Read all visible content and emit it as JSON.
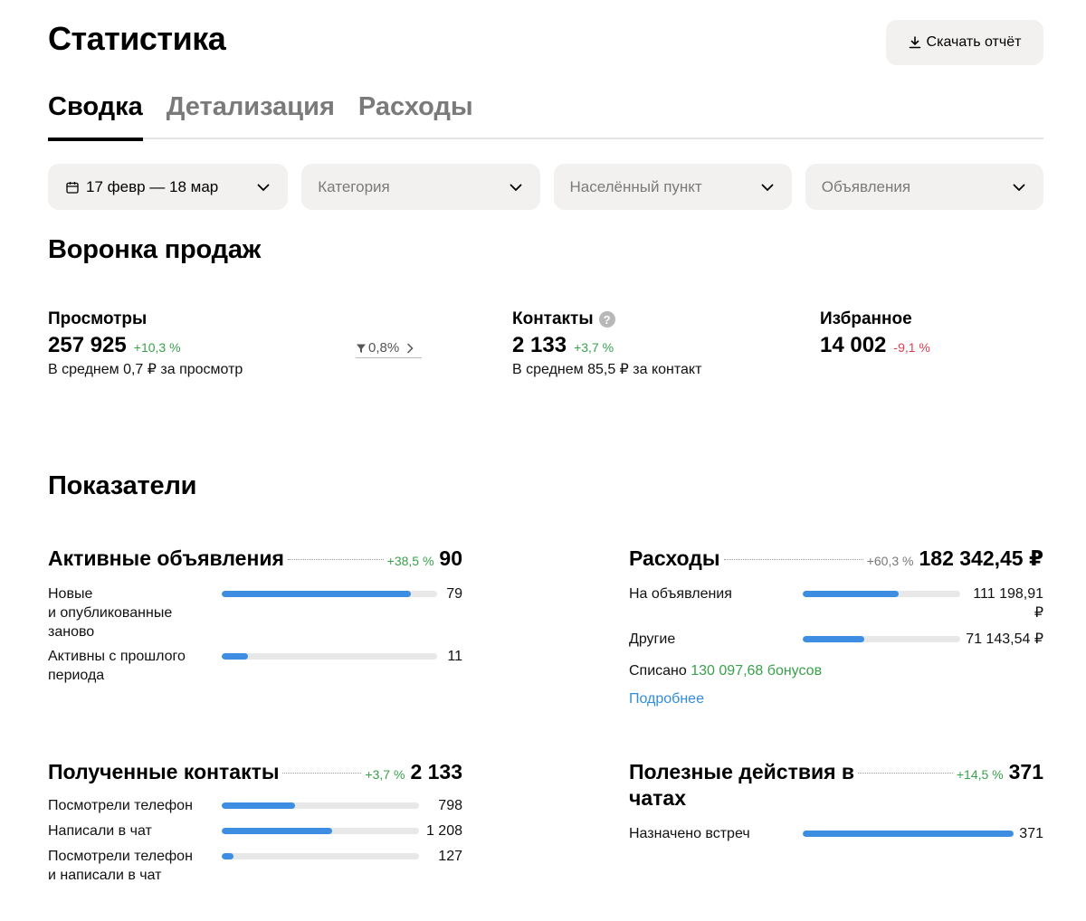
{
  "header": {
    "title": "Статистика",
    "download_label": "Скачать отчёт"
  },
  "tabs": [
    {
      "label": "Сводка",
      "active": true
    },
    {
      "label": "Детализация",
      "active": false
    },
    {
      "label": "Расходы",
      "active": false
    }
  ],
  "filters": {
    "date": "17 февр — 18 мар",
    "category": "Категория",
    "location": "Населённый пункт",
    "ads": "Объявления"
  },
  "funnel": {
    "title": "Воронка продаж",
    "views": {
      "label": "Просмотры",
      "value": "257 925",
      "delta": "+10,3 %",
      "sub": "В среднем 0,7 ₽ за просмотр"
    },
    "conversion": "0,8%",
    "contacts": {
      "label": "Контакты",
      "help": "?",
      "value": "2 133",
      "delta": "+3,7 %",
      "sub": "В среднем 85,5 ₽ за контакт"
    },
    "favorites": {
      "label": "Избранное",
      "value": "14 002",
      "delta": "-9,1 %"
    }
  },
  "metrics": {
    "title": "Показатели",
    "active_ads": {
      "title": "Активные объявления",
      "delta": "+38,5 %",
      "total": "90",
      "rows": [
        {
          "label_line1": "Новые",
          "label_line2": "и опубликованные",
          "label_line3": "заново",
          "value": "79",
          "fill": 0.88
        },
        {
          "label_line1": "Активны с прошлого",
          "label_line2": "периода",
          "value": "11",
          "fill": 0.12
        }
      ]
    },
    "expenses": {
      "title": "Расходы",
      "delta": "+60,3 %",
      "total": "182 342,45 ₽",
      "rows": [
        {
          "label": "На объявления",
          "value": "111 198,91 ₽",
          "fill": 0.61
        },
        {
          "label": "Другие",
          "value": "71 143,54 ₽",
          "fill": 0.39
        }
      ],
      "bonus_prefix": "Списано",
      "bonus_value": "130 097,68 бонусов",
      "more_link": "Подробнее"
    },
    "contacts": {
      "title": "Полученные контакты",
      "delta": "+3,7 %",
      "total": "2 133",
      "rows": [
        {
          "label": "Посмотрели телефон",
          "value": "798",
          "fill": 0.37
        },
        {
          "label": "Написали в чат",
          "value": "1 208",
          "fill": 0.56
        },
        {
          "label_line1": "Посмотрели телефон",
          "label_line2": "и написали в чат",
          "value": "127",
          "fill": 0.06
        }
      ]
    },
    "chat_actions": {
      "title_line1": "Полезные действия в",
      "title_line2": "чатах",
      "delta": "+14,5 %",
      "total": "371",
      "rows": [
        {
          "label": "Назначено встреч",
          "value": "371",
          "fill": 1.0
        }
      ]
    }
  },
  "colors": {
    "accent_bar": "#3d8de2",
    "positive": "#38a14b",
    "negative": "#e13c4e",
    "link": "#2f8de4",
    "control_bg": "#f2f1f0"
  },
  "icons": [
    "download-icon",
    "calendar-icon",
    "chevron-down-icon",
    "help-icon",
    "funnel-filter-icon",
    "chevron-right-icon"
  ]
}
